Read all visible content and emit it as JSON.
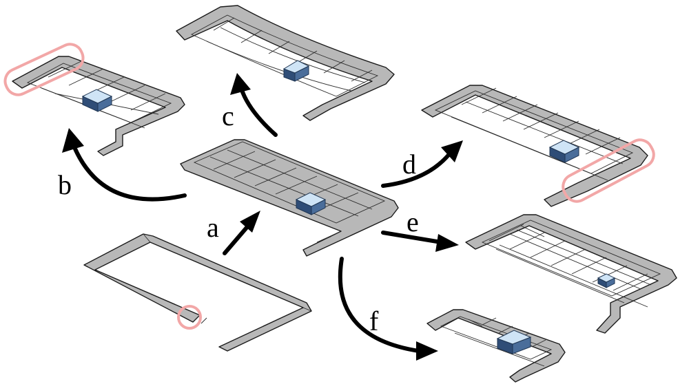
{
  "figure": {
    "labels": {
      "a": "a",
      "b": "b",
      "c": "c",
      "d": "d",
      "e": "e",
      "f": "f"
    },
    "colors": {
      "surface": "#b8b8b8",
      "mesh_line": "#2a2a2a",
      "box": "#6f93c4",
      "arrow": "#000000",
      "highlight": "#f2a7a7"
    }
  }
}
